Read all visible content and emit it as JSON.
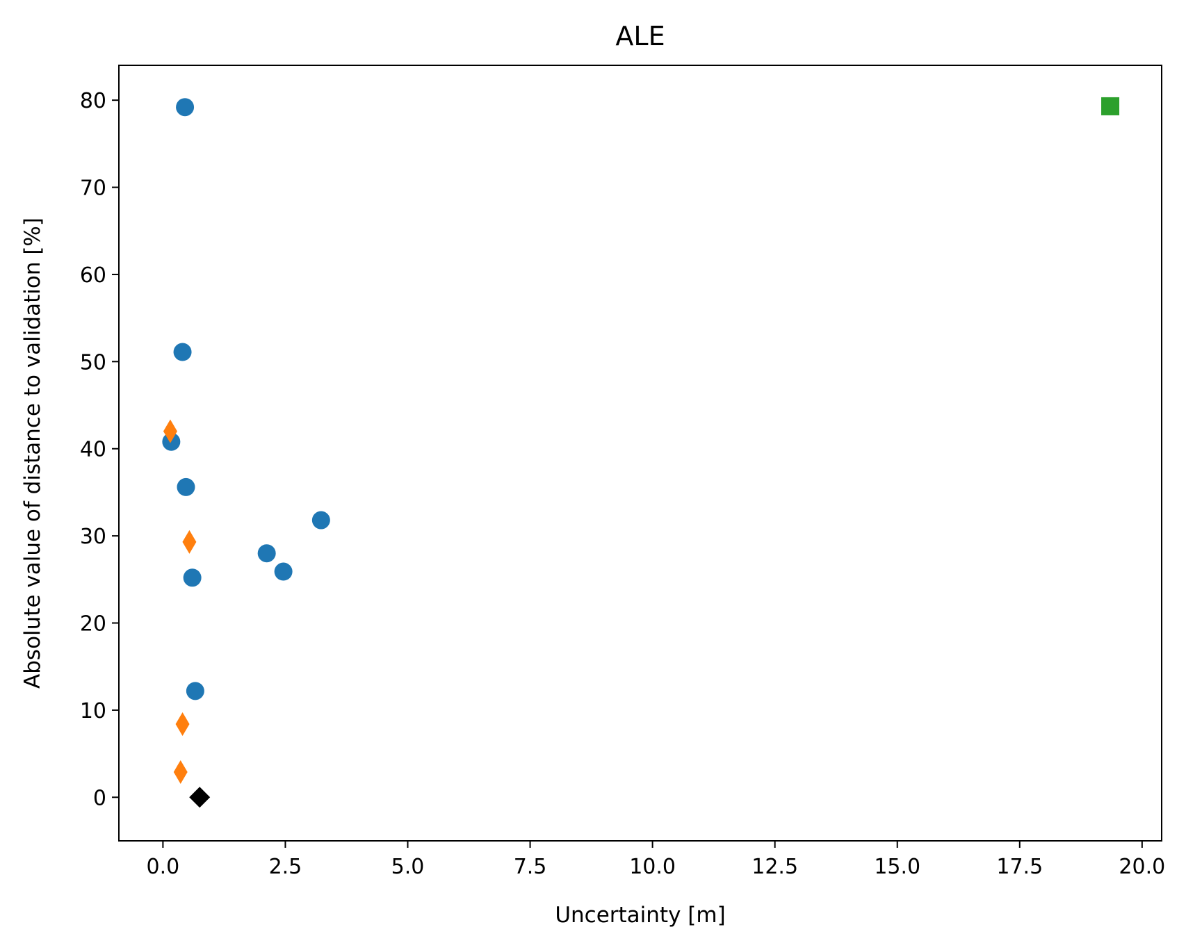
{
  "chart_data": {
    "type": "scatter",
    "title": "ALE",
    "xlabel": "Uncertainty [m]",
    "ylabel": "Absolute value of distance to validation [%]",
    "xlim": [
      -0.9,
      20.4
    ],
    "ylim": [
      -5,
      84
    ],
    "xticks": [
      0,
      2.5,
      5,
      7.5,
      10,
      12.5,
      15,
      17.5,
      20
    ],
    "xtick_labels": [
      "0.0",
      "2.5",
      "5.0",
      "7.5",
      "10.0",
      "12.5",
      "15.0",
      "17.5",
      "20.0"
    ],
    "yticks": [
      0,
      10,
      20,
      30,
      40,
      50,
      60,
      70,
      80
    ],
    "ytick_labels": [
      "0",
      "10",
      "20",
      "30",
      "40",
      "50",
      "60",
      "70",
      "80"
    ],
    "grid": false,
    "series": [
      {
        "marker": "circle",
        "color": "#1f77b4",
        "points": [
          {
            "x": 0.45,
            "y": 79.2
          },
          {
            "x": 0.4,
            "y": 51.1
          },
          {
            "x": 0.17,
            "y": 40.8
          },
          {
            "x": 0.47,
            "y": 35.6
          },
          {
            "x": 3.23,
            "y": 31.8
          },
          {
            "x": 2.12,
            "y": 28.0
          },
          {
            "x": 2.46,
            "y": 25.9
          },
          {
            "x": 0.6,
            "y": 25.2
          },
          {
            "x": 0.66,
            "y": 12.2
          }
        ]
      },
      {
        "marker": "thin_diamond",
        "color": "#ff7f0e",
        "points": [
          {
            "x": 0.15,
            "y": 42.0
          },
          {
            "x": 0.54,
            "y": 29.3
          },
          {
            "x": 0.4,
            "y": 8.4
          },
          {
            "x": 0.36,
            "y": 2.9
          }
        ]
      },
      {
        "marker": "square",
        "color": "#2ca02c",
        "points": [
          {
            "x": 19.35,
            "y": 79.3
          }
        ]
      },
      {
        "marker": "diamond",
        "color": "#000000",
        "points": [
          {
            "x": 0.75,
            "y": 0.0
          }
        ]
      }
    ]
  }
}
